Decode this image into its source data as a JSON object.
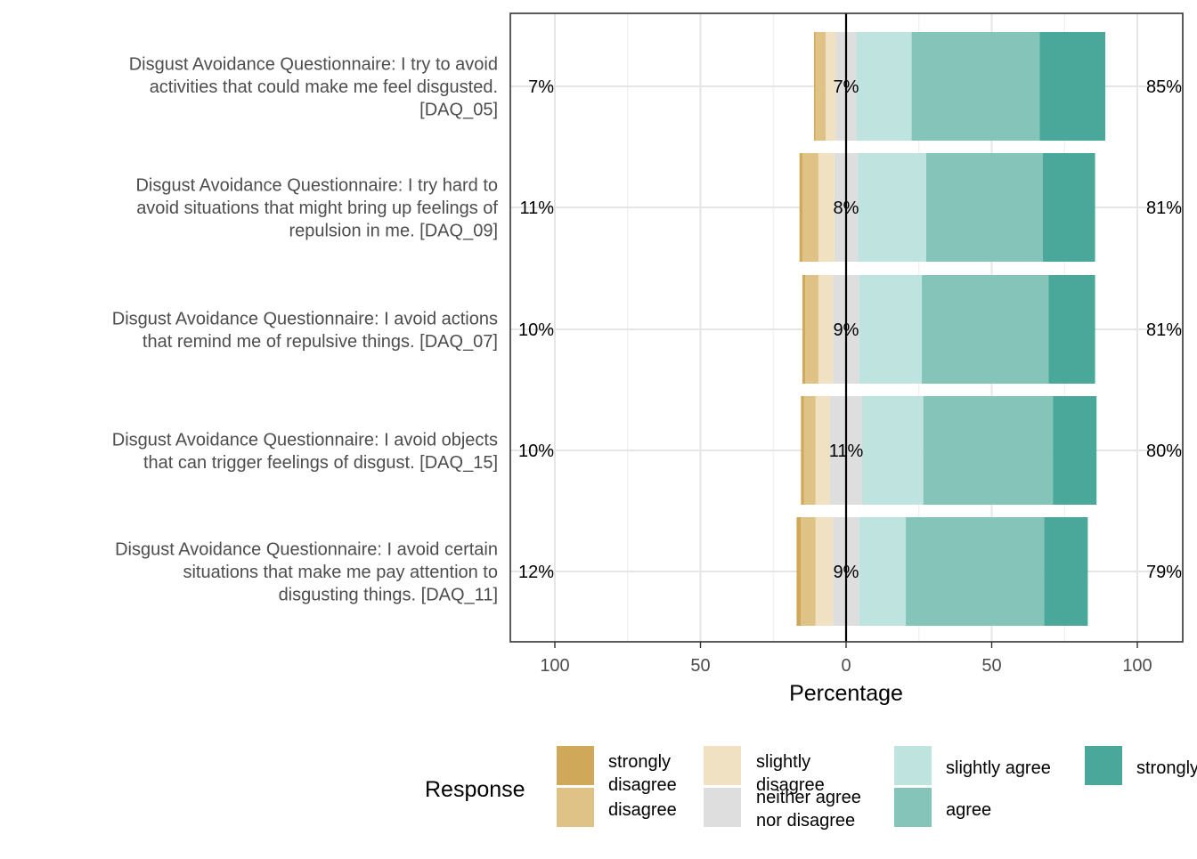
{
  "chart_data": {
    "type": "bar",
    "subtype": "diverging-stacked-likert",
    "xlabel": "Percentage",
    "xlim": [
      -100,
      100
    ],
    "xticks": [
      -100,
      -50,
      0,
      50,
      100
    ],
    "xtick_labels": [
      "100",
      "50",
      "0",
      "50",
      "100"
    ],
    "grid": true,
    "legend": {
      "title": "Response",
      "position": "bottom",
      "entries": [
        {
          "label": "strongly disagree",
          "lines": [
            "strongly",
            "disagree"
          ],
          "color": "#D0A85A"
        },
        {
          "label": "disagree",
          "lines": [
            "disagree"
          ],
          "color": "#DFC386"
        },
        {
          "label": "slightly disagree",
          "lines": [
            "slightly",
            "disagree"
          ],
          "color": "#EFE1C2"
        },
        {
          "label": "neither agree nor disagree",
          "lines": [
            "neither agree",
            "nor disagree"
          ],
          "color": "#DEDEDE"
        },
        {
          "label": "slightly agree",
          "lines": [
            "slightly agree"
          ],
          "color": "#BFE3DF"
        },
        {
          "label": "agree",
          "lines": [
            "agree"
          ],
          "color": "#85C4B9"
        },
        {
          "label": "strongly agree",
          "lines": [
            "strongly agree"
          ],
          "color": "#4AA89B"
        }
      ]
    },
    "items": [
      {
        "label": "Disgust Avoidance Questionnaire: I try to avoid activities that could make me feel disgusted. [DAQ_05]",
        "label_lines": [
          "Disgust Avoidance Questionnaire: I try to avoid",
          "activities that could make me feel disgusted.",
          "[DAQ_05]"
        ],
        "values": [
          0.5,
          3.5,
          3.5,
          7,
          19,
          44,
          22.5
        ],
        "left_pct": "7%",
        "center_pct": "7%",
        "right_pct": "85%"
      },
      {
        "label": "Disgust Avoidance Questionnaire: I try hard to avoid situations that might bring up feelings of repulsion in me. [DAQ_09]",
        "label_lines": [
          "Disgust Avoidance Questionnaire: I try hard to",
          "avoid situations that might bring up feelings of",
          "repulsion in me. [DAQ_09]"
        ],
        "values": [
          1,
          5.5,
          5.5,
          8,
          23.5,
          40,
          18
        ],
        "left_pct": "11%",
        "center_pct": "8%",
        "right_pct": "81%"
      },
      {
        "label": "Disgust Avoidance Questionnaire: I avoid actions that remind me of repulsive things. [DAQ_07]",
        "label_lines": [
          "Disgust Avoidance Questionnaire: I avoid actions",
          "that remind me of repulsive things. [DAQ_07]"
        ],
        "values": [
          1,
          4.5,
          5,
          9,
          21.5,
          43.5,
          16
        ],
        "left_pct": "10%",
        "center_pct": "9%",
        "right_pct": "81%"
      },
      {
        "label": "Disgust Avoidance Questionnaire: I avoid objects that can trigger feelings of disgust. [DAQ_15]",
        "label_lines": [
          "Disgust Avoidance Questionnaire: I avoid objects",
          "that can trigger feelings of disgust. [DAQ_15]"
        ],
        "values": [
          1,
          4,
          5,
          11,
          21,
          44.5,
          15
        ],
        "left_pct": "10%",
        "center_pct": "11%",
        "right_pct": "80%"
      },
      {
        "label": "Disgust Avoidance Questionnaire: I avoid certain situations that make me pay attention to disgusting things. [DAQ_11]",
        "label_lines": [
          "Disgust Avoidance Questionnaire: I avoid certain",
          "situations that make me pay attention to",
          "disgusting things. [DAQ_11]"
        ],
        "values": [
          1.5,
          5,
          6,
          9,
          16,
          47.5,
          15
        ],
        "left_pct": "12%",
        "center_pct": "9%",
        "right_pct": "79%"
      }
    ]
  }
}
